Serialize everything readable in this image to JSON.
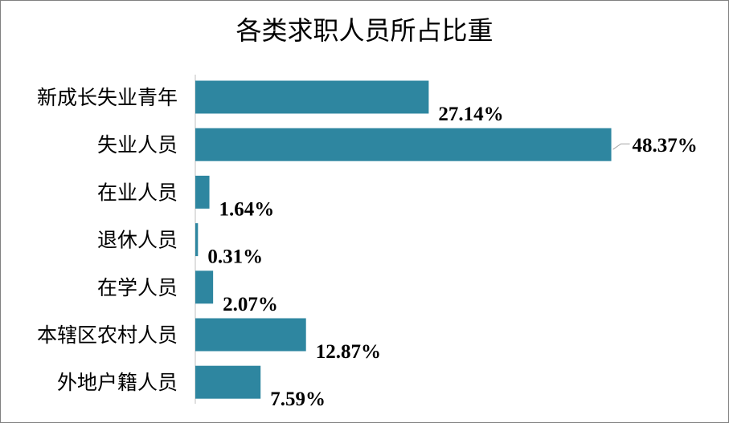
{
  "chart_data": {
    "type": "bar",
    "orientation": "horizontal",
    "title": "各类求职人员所占比重",
    "categories": [
      "新成长失业青年",
      "失业人员",
      "在业人员",
      "退休人员",
      "在学人员",
      "本辖区农村人员",
      "外地户籍人员"
    ],
    "values": [
      27.14,
      48.37,
      1.64,
      0.31,
      2.07,
      12.87,
      7.59
    ],
    "data_labels": [
      "27.14%",
      "48.37%",
      "1.64%",
      "0.31%",
      "2.07%",
      "12.87%",
      "7.59%"
    ],
    "bar_color": "#2E86A0",
    "grid": false,
    "legend": "none"
  }
}
